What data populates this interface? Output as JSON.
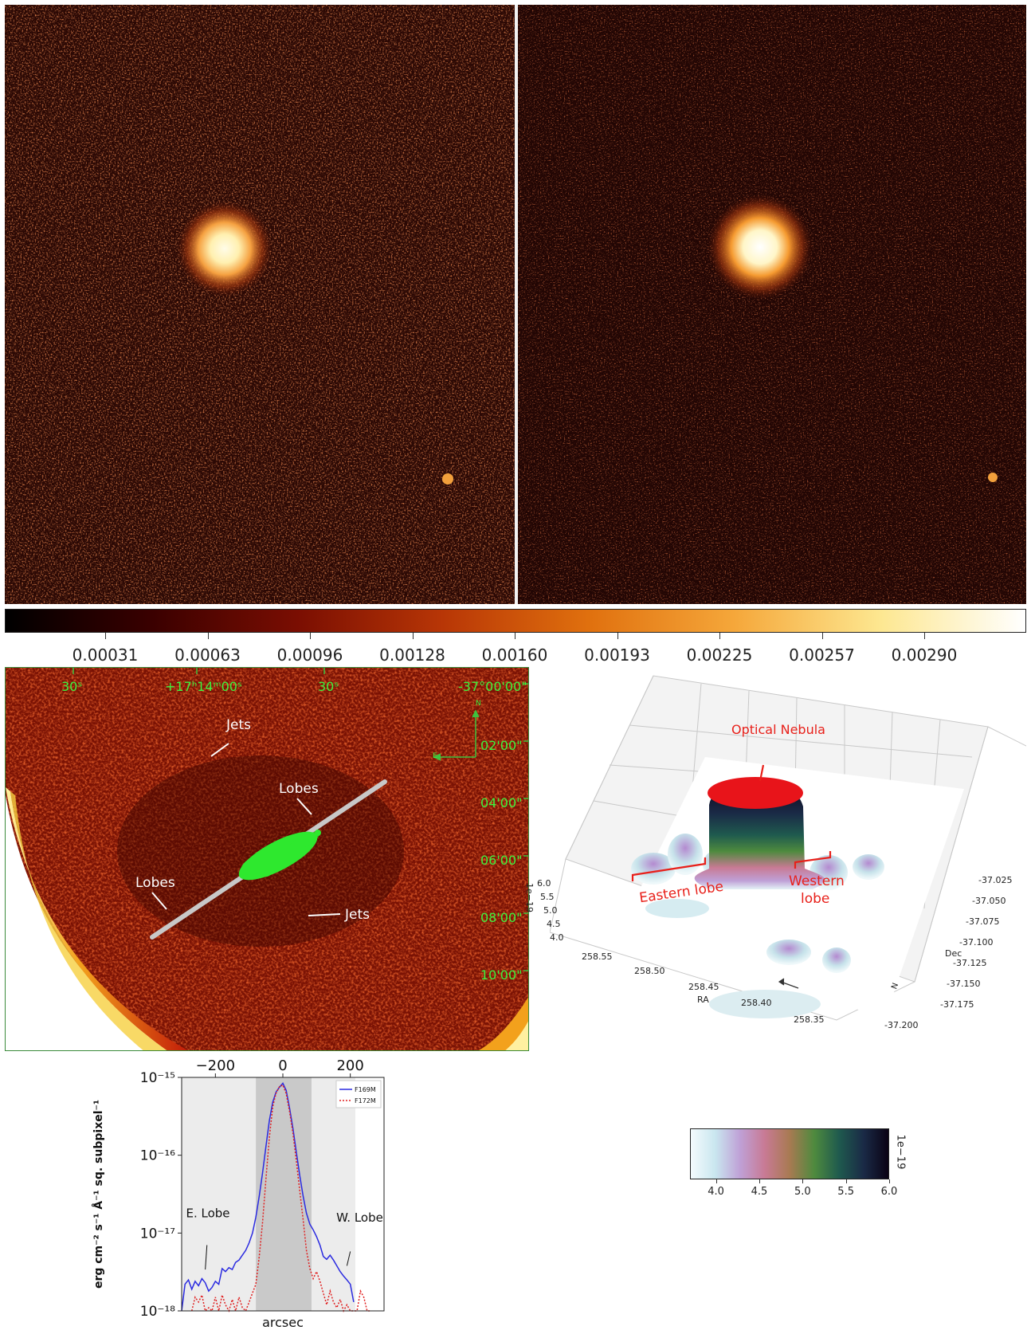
{
  "colorbar_top": {
    "ticks": [
      "0.00031",
      "0.00063",
      "0.00096",
      "0.00128",
      "0.00160",
      "0.00193",
      "0.00225",
      "0.00257",
      "0.00290"
    ],
    "colors": [
      "#000000",
      "#3a0000",
      "#7a0e02",
      "#b83606",
      "#e0700e",
      "#f5a73a",
      "#fde790",
      "#ffffff"
    ]
  },
  "radio_map": {
    "ra_labels": [
      "30ˢ",
      "+17ʰ14ᵐ00ˢ",
      "30ˢ"
    ],
    "dec_labels": [
      "-37°00'00\"",
      "02'00\"",
      "04'00\"",
      "06'00\"",
      "08'00\"",
      "10'00\""
    ],
    "compass_n": "N",
    "compass_e": "E",
    "annotations": {
      "jets_top": "Jets",
      "lobes_right": "Lobes",
      "lobes_left": "Lobes",
      "jets_bottom": "Jets"
    }
  },
  "surface_plot": {
    "z_exponent": "1e−19",
    "z_ticks": [
      "6.0",
      "5.5",
      "5.0",
      "4.5",
      "4.0"
    ],
    "ra_label": "RA",
    "ra_ticks": [
      "258.55",
      "258.50",
      "258.45",
      "258.40",
      "258.35"
    ],
    "dec_label": "Dec",
    "dec_ticks": [
      "-37.025",
      "-37.050",
      "-37.075",
      "-37.100",
      "-37.125",
      "-37.150",
      "-37.175",
      "-37.200"
    ],
    "annotations": {
      "optical_nebula": "Optical Nebula",
      "eastern_lobe": "Eastern lobe",
      "western_lobe_1": "Western",
      "western_lobe_2": "lobe"
    },
    "compass_n": "N",
    "annotation_color": "#e8201a"
  },
  "colorbar_bottom": {
    "ticks": [
      "4.0",
      "4.5",
      "5.0",
      "5.5",
      "6.0"
    ],
    "exponent": "1e−19",
    "colors": [
      "#f4fbfd",
      "#c9e6ef",
      "#bfa0d6",
      "#c87a94",
      "#a87a52",
      "#4e8a3e",
      "#1f5a4e",
      "#1a2a46",
      "#0a0214"
    ]
  },
  "chart_data": {
    "type": "line",
    "xlabel": "arcsec",
    "ylabel": "erg cm⁻² s⁻¹ Å⁻¹ sq. subpixel⁻¹",
    "x_ticks": [
      "−200",
      "0",
      "200"
    ],
    "xlim": [
      -300,
      300
    ],
    "ylim": [
      1e-18,
      1e-15
    ],
    "yscale": "log",
    "y_ticks": [
      "10⁻¹⁵",
      "10⁻¹⁶",
      "10⁻¹⁷",
      "10⁻¹⁸"
    ],
    "legend": "top-right",
    "annotations": [
      "E. Lobe",
      "W. Lobe"
    ],
    "shaded_regions": [
      {
        "from": -300,
        "to": 215,
        "shade": "light"
      },
      {
        "from": -80,
        "to": 85,
        "shade": "dark"
      }
    ],
    "series": [
      {
        "name": "F169M",
        "color": "#2a2ae0",
        "style": "solid",
        "x": [
          -300,
          -290,
          -280,
          -270,
          -260,
          -250,
          -240,
          -230,
          -220,
          -210,
          -200,
          -190,
          -180,
          -170,
          -160,
          -150,
          -140,
          -130,
          -120,
          -110,
          -100,
          -90,
          -80,
          -70,
          -60,
          -50,
          -40,
          -30,
          -20,
          -10,
          0,
          10,
          20,
          30,
          40,
          50,
          60,
          70,
          80,
          90,
          100,
          110,
          120,
          130,
          140,
          150,
          160,
          170,
          180,
          190,
          200,
          210
        ],
        "y": [
          1e-18,
          2.2e-18,
          2.5e-18,
          1.9e-18,
          2.4e-18,
          2.1e-18,
          2.6e-18,
          2.3e-18,
          1.8e-18,
          2e-18,
          2.4e-18,
          2.2e-18,
          3.5e-18,
          3.2e-18,
          3.6e-18,
          3.4e-18,
          4.2e-18,
          4.5e-18,
          5.2e-18,
          6e-18,
          7.5e-18,
          1e-17,
          1.6e-17,
          3e-17,
          6e-17,
          1.3e-16,
          2.8e-16,
          4.8e-16,
          6.5e-16,
          7.5e-16,
          8.4e-16,
          6.8e-16,
          4e-16,
          2.2e-16,
          1.1e-16,
          5.5e-17,
          3e-17,
          1.8e-17,
          1.3e-17,
          1.1e-17,
          9e-18,
          7e-18,
          5e-18,
          4.6e-18,
          5.2e-18,
          4.5e-18,
          3.8e-18,
          3.2e-18,
          2.8e-18,
          2.5e-18,
          2.2e-18,
          1.3e-18
        ]
      },
      {
        "name": "F172M",
        "color": "#e02020",
        "style": "dotted",
        "x": [
          -270,
          -260,
          -250,
          -240,
          -230,
          -220,
          -210,
          -200,
          -190,
          -180,
          -170,
          -160,
          -150,
          -140,
          -130,
          -120,
          -110,
          -100,
          -90,
          -80,
          -70,
          -60,
          -50,
          -40,
          -30,
          -20,
          -10,
          0,
          10,
          20,
          30,
          40,
          50,
          60,
          70,
          80,
          90,
          100,
          110,
          120,
          130,
          140,
          150,
          160,
          170,
          180,
          190,
          200,
          210,
          220,
          230,
          240,
          250,
          260
        ],
        "y": [
          1e-18,
          1.5e-18,
          1.3e-18,
          1.6e-18,
          1e-18,
          1.1e-18,
          1e-18,
          1.5e-18,
          1e-18,
          1.6e-18,
          1.2e-18,
          1e-18,
          1.4e-18,
          1e-18,
          1.5e-18,
          1.1e-18,
          1e-18,
          1.3e-18,
          1.7e-18,
          2.2e-18,
          5e-18,
          1.4e-17,
          5e-17,
          1.7e-16,
          4.2e-16,
          6.3e-16,
          7.6e-16,
          8e-16,
          6.2e-16,
          3.6e-16,
          1.9e-16,
          8.5e-17,
          3.5e-17,
          1.5e-17,
          6e-18,
          3.5e-18,
          2.6e-18,
          3.2e-18,
          2.4e-18,
          1.7e-18,
          1.2e-18,
          1.8e-18,
          1.3e-18,
          1.1e-18,
          1.4e-18,
          1e-18,
          1.2e-18,
          1e-18,
          1e-18,
          1e-18,
          1.8e-18,
          1.5e-18,
          1e-18,
          1e-18
        ]
      }
    ]
  }
}
